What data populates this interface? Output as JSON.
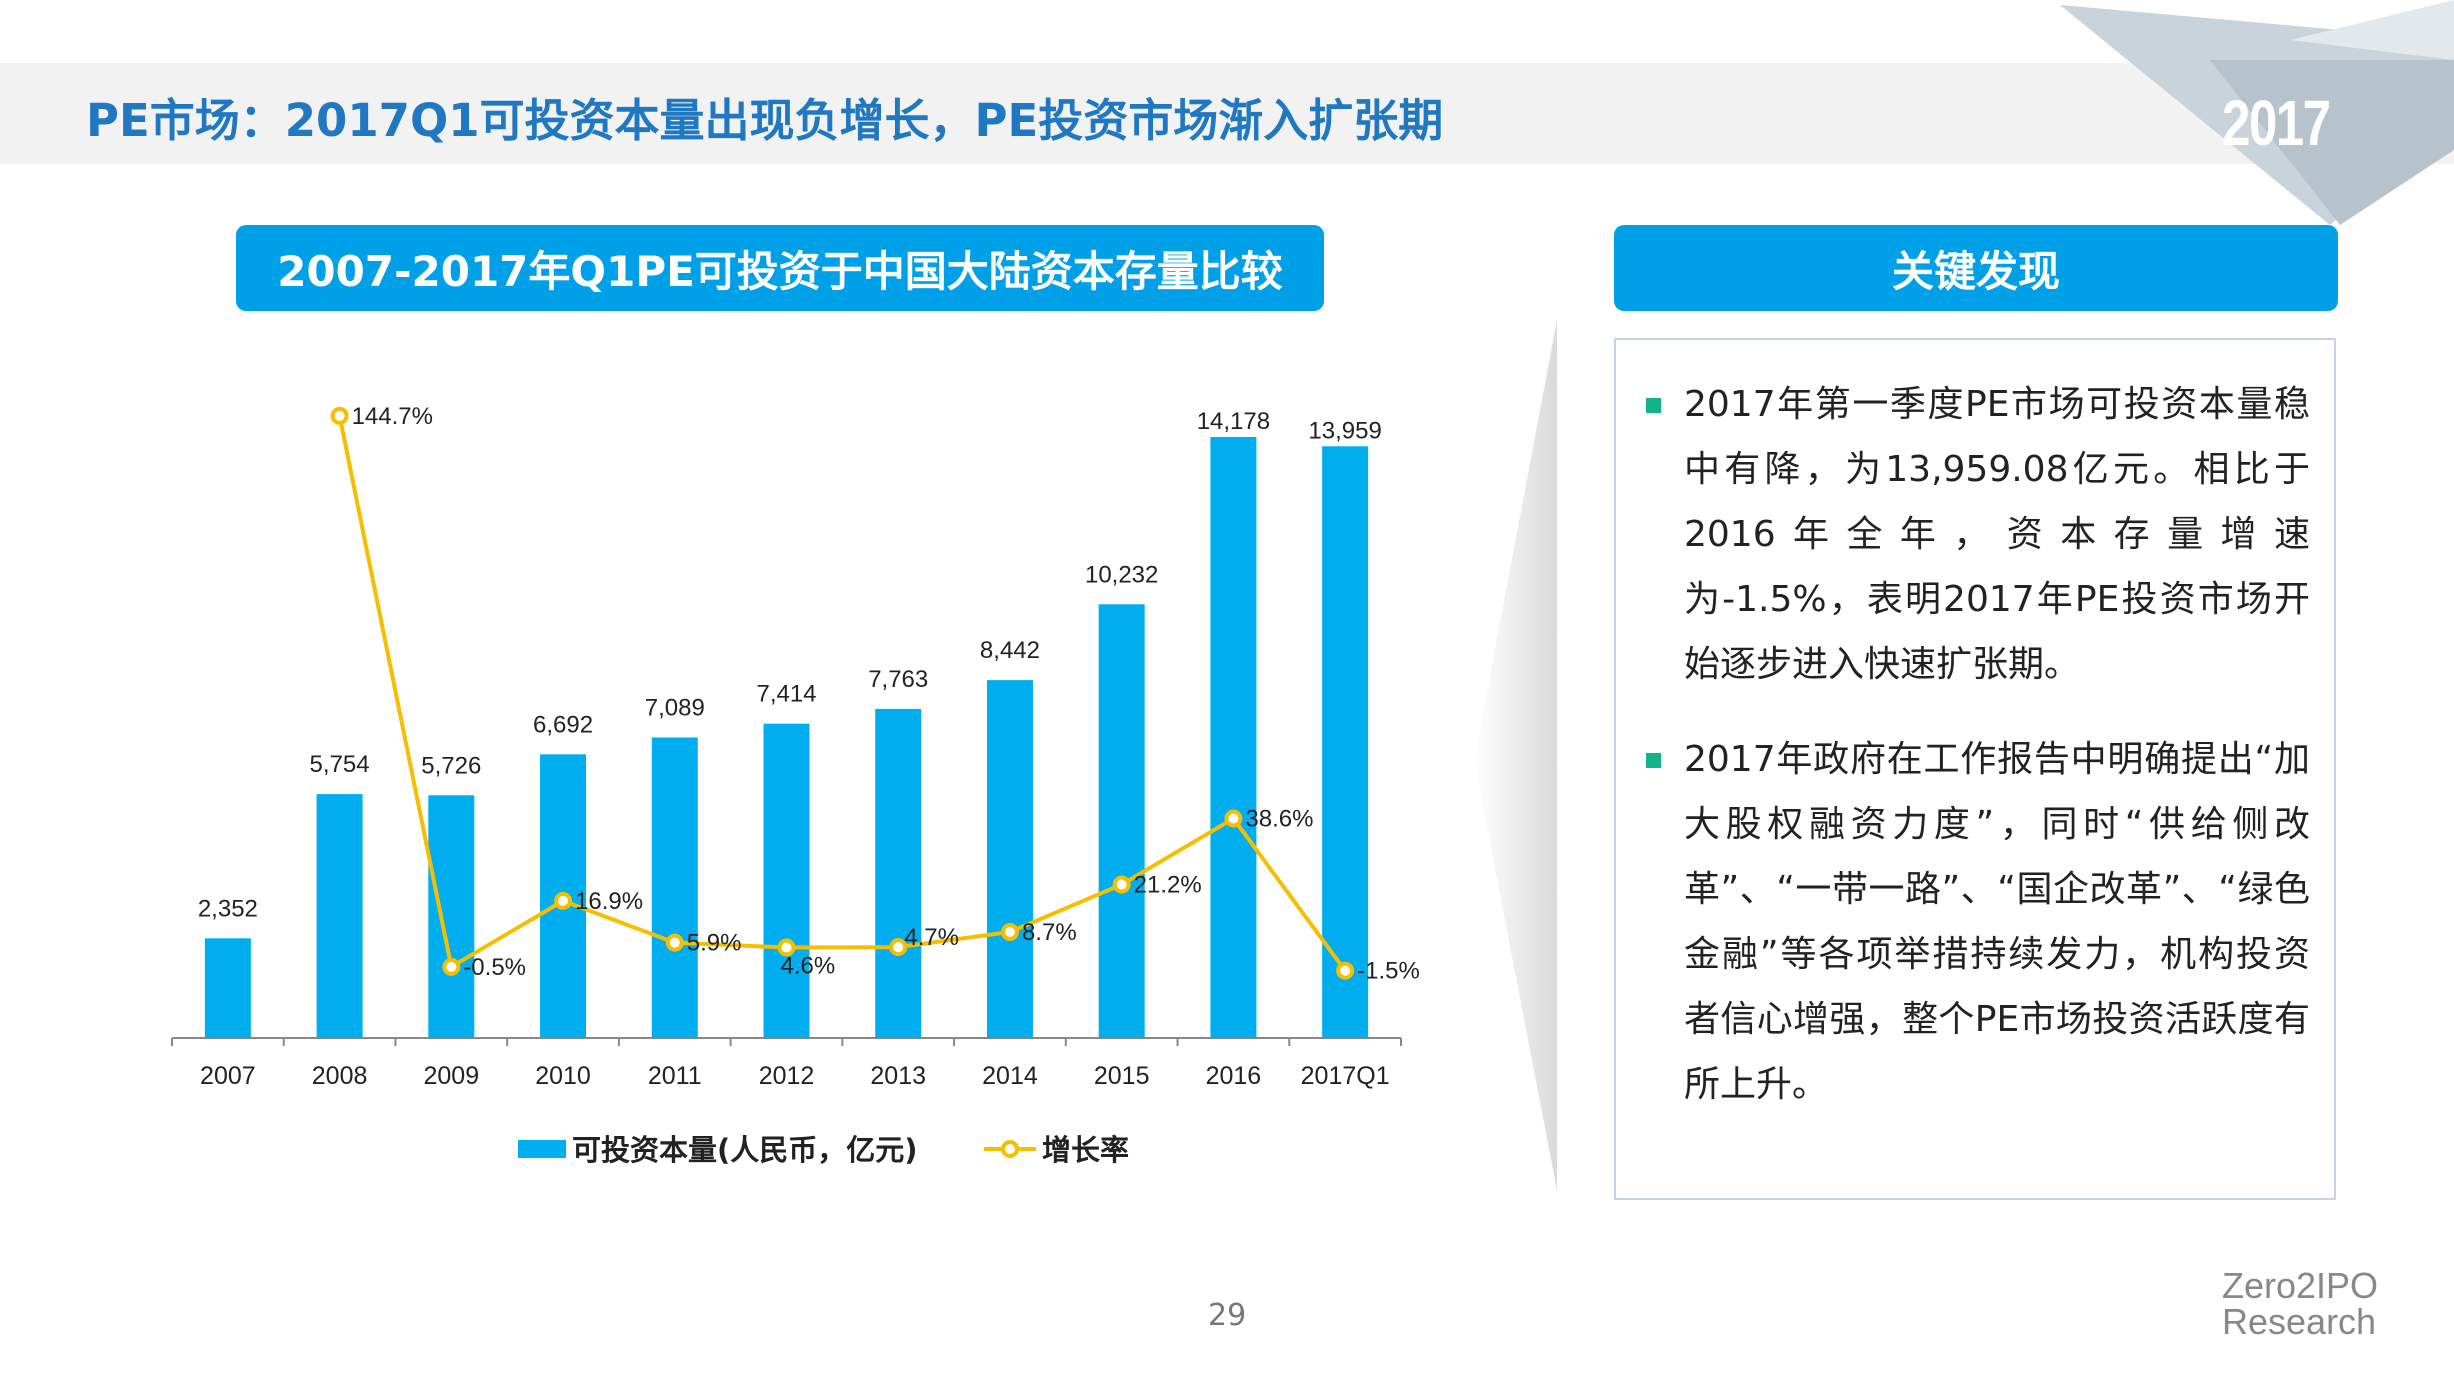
{
  "header": {
    "title": "PE市场：2017Q1可投资本量出现负增长，PE投资市场渐入扩张期",
    "corner_year": "2017"
  },
  "findings": {
    "title": "关键发现",
    "bullets": [
      "2017年第一季度PE市场可投资本量稳中有降，为13,959.08亿元。相比于2016年全年，资本存量增速为-1.5%，表明2017年PE投资市场开始逐步进入快速扩张期。",
      "2017年政府在工作报告中明确提出“加大股权融资力度”，同时“供给侧改革”、“一带一路”、“国企改革”、“绿色金融”等各项举措持续发力，机构投资者信心增强，整个PE市场投资活跃度有所上升。"
    ]
  },
  "footer": {
    "page_number": "29",
    "logo_line1": "Zero2IPO",
    "logo_line2": "Research"
  },
  "colors": {
    "bar": "#00aeef",
    "line": "#f5bf00",
    "title_bg": "#00a0e9",
    "bullet": "#13b38a"
  },
  "chart_data": {
    "type": "bar+line",
    "title": "2007-2017年Q1PE可投资于中国大陆资本存量比较",
    "categories": [
      "2007",
      "2008",
      "2009",
      "2010",
      "2011",
      "2012",
      "2013",
      "2014",
      "2015",
      "2016",
      "2017Q1"
    ],
    "series": [
      {
        "name": "可投资本量(人民币，亿元)",
        "type": "bar",
        "values": [
          2352,
          5754,
          5726,
          6692,
          7089,
          7414,
          7763,
          8442,
          10232,
          14178,
          13959
        ],
        "labels": [
          "2,352",
          "5,754",
          "5,726",
          "6,692",
          "7,089",
          "7,414",
          "7,763",
          "8,442",
          "10,232",
          "14,178",
          "13,959"
        ]
      },
      {
        "name": "增长率",
        "type": "line",
        "values": [
          null,
          144.7,
          -0.5,
          16.9,
          5.9,
          4.6,
          4.7,
          8.7,
          21.2,
          38.6,
          -1.5
        ],
        "labels": [
          "",
          "144.7%",
          "-0.5%",
          "16.9%",
          "5.9%",
          "4.6%",
          "4.7%",
          "8.7%",
          "21.2%",
          "38.6%",
          "-1.5%"
        ]
      }
    ],
    "legend": "bottom",
    "grid": false
  }
}
